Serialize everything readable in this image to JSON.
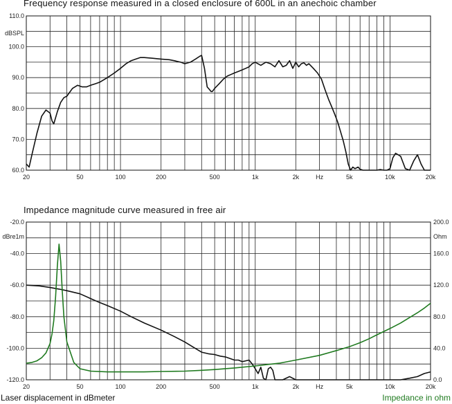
{
  "chart_data": [
    {
      "type": "line",
      "title": "Frequency response measured  in a closed enclosure of 600L in an anechoic chamber",
      "ylabel": "dBSPL",
      "xscale": "log",
      "xlim": [
        20,
        20000
      ],
      "ylim": [
        60,
        110
      ],
      "grid": true,
      "y_ticks": [
        {
          "value": 110,
          "label": "110.0"
        },
        {
          "value": 100,
          "label": "100.0"
        },
        {
          "value": 90,
          "label": "90.0"
        },
        {
          "value": 80,
          "label": "80.0"
        },
        {
          "value": 70,
          "label": "70.0"
        },
        {
          "value": 60,
          "label": "60.0"
        }
      ],
      "x_ticks": [
        {
          "value": 20,
          "label": "20"
        },
        {
          "value": 50,
          "label": "50"
        },
        {
          "value": 100,
          "label": "100"
        },
        {
          "value": 200,
          "label": "200"
        },
        {
          "value": 500,
          "label": "500"
        },
        {
          "value": 1000,
          "label": "1k"
        },
        {
          "value": 2000,
          "label": "2k"
        },
        {
          "value": 5000,
          "label": "5k"
        },
        {
          "value": 10000,
          "label": "10k"
        },
        {
          "value": 20000,
          "label": "20k"
        }
      ],
      "x_unit": "Hz",
      "series": [
        {
          "color": "#111111",
          "x": [
            20,
            21,
            22,
            24,
            26,
            28,
            30,
            31,
            32,
            34,
            36,
            38,
            40,
            44,
            48,
            52,
            56,
            60,
            65,
            70,
            80,
            90,
            100,
            110,
            120,
            130,
            140,
            150,
            170,
            200,
            230,
            250,
            280,
            300,
            330,
            360,
            390,
            400,
            420,
            440,
            460,
            470,
            480,
            500,
            540,
            580,
            620,
            660,
            700,
            750,
            800,
            850,
            900,
            950,
            1000,
            1100,
            1200,
            1300,
            1400,
            1500,
            1600,
            1700,
            1800,
            1900,
            2000,
            2100,
            2200,
            2300,
            2400,
            2500,
            2700,
            2900,
            3100,
            3300,
            3500,
            3700,
            3900,
            4100,
            4300,
            4500,
            4700,
            4900,
            5100,
            5300,
            5500,
            5800,
            6000,
            6300,
            6600,
            7000,
            8000,
            8500,
            9000,
            9500,
            10000,
            10500,
            11000,
            12000,
            13000,
            14000,
            15000,
            16000,
            17000,
            18000,
            19000,
            20000
          ],
          "y": [
            62,
            61,
            65,
            72,
            77.5,
            79.5,
            78.5,
            76,
            75,
            79,
            82,
            83.5,
            84,
            86.5,
            87.5,
            87,
            87,
            87.5,
            88,
            88.5,
            90,
            91.5,
            93,
            94.5,
            95.5,
            96,
            96.5,
            96.5,
            96.3,
            96,
            95.8,
            95.5,
            95,
            94.5,
            95,
            96,
            97,
            97.2,
            93,
            87,
            86,
            85.5,
            85.5,
            86.5,
            88,
            89.5,
            90.5,
            91,
            91.5,
            92,
            92.5,
            93,
            93.5,
            94.5,
            95,
            94,
            95,
            94.5,
            93.5,
            95.5,
            93.5,
            94,
            95.5,
            93,
            95,
            93.5,
            94.5,
            94.8,
            94,
            94.5,
            93,
            91.5,
            89.5,
            86,
            83,
            80.5,
            78,
            75.5,
            72.5,
            69.5,
            66,
            62,
            60,
            61,
            60.5,
            61,
            60.3,
            60,
            60,
            60,
            60,
            60.2,
            60,
            60,
            60.5,
            64,
            65.5,
            64.5,
            60.5,
            60,
            63,
            65,
            62,
            60,
            60,
            60
          ]
        }
      ]
    },
    {
      "type": "line",
      "title": "Impedance  magnitude curve measured in free air",
      "ylabel": "dBre1m",
      "y2label": "Ohm",
      "xscale": "log",
      "xlim": [
        20,
        20000
      ],
      "ylim": [
        -120,
        -20
      ],
      "y2lim": [
        0,
        200
      ],
      "grid": true,
      "y_ticks": [
        {
          "value": -20,
          "label": "-20.0"
        },
        {
          "value": -40,
          "label": "-40.0"
        },
        {
          "value": -60,
          "label": "-60.0"
        },
        {
          "value": -80,
          "label": "-80.0"
        },
        {
          "value": -100,
          "label": "-100.0"
        },
        {
          "value": -120,
          "label": "-120.0"
        }
      ],
      "y2_ticks": [
        {
          "value": 200,
          "label": "200.0"
        },
        {
          "value": 160,
          "label": "160.0"
        },
        {
          "value": 120,
          "label": "120.0"
        },
        {
          "value": 80,
          "label": "80.0"
        },
        {
          "value": 40,
          "label": "40.0"
        },
        {
          "value": 0,
          "label": "0.0"
        }
      ],
      "x_ticks": [
        {
          "value": 20,
          "label": "20"
        },
        {
          "value": 50,
          "label": "50"
        },
        {
          "value": 100,
          "label": "100"
        },
        {
          "value": 200,
          "label": "200"
        },
        {
          "value": 500,
          "label": "500"
        },
        {
          "value": 1000,
          "label": "1k"
        },
        {
          "value": 2000,
          "label": "2k"
        },
        {
          "value": 5000,
          "label": "5k"
        },
        {
          "value": 10000,
          "label": "10k"
        },
        {
          "value": 20000,
          "label": "20k"
        }
      ],
      "x_unit": "Hz",
      "series": [
        {
          "name": "Laser displacement in dBmeter",
          "axis": "left",
          "color": "#111111",
          "x": [
            20,
            25,
            30,
            35,
            40,
            50,
            60,
            70,
            80,
            100,
            120,
            150,
            200,
            250,
            300,
            350,
            400,
            450,
            500,
            550,
            600,
            650,
            700,
            750,
            800,
            850,
            900,
            950,
            1000,
            1050,
            1100,
            1150,
            1200,
            1250,
            1300,
            1350,
            1400,
            1500,
            1600,
            1800,
            2000,
            3000,
            5000,
            8000,
            12000,
            14000,
            16000,
            18000,
            20000
          ],
          "y": [
            -60,
            -60.5,
            -61.5,
            -62.5,
            -63.5,
            -65.5,
            -68.5,
            -71,
            -73,
            -76.5,
            -80,
            -84,
            -88.5,
            -92.5,
            -96,
            -99.5,
            -102.5,
            -103.5,
            -104,
            -105,
            -105.5,
            -106.5,
            -107.5,
            -107.5,
            -108.5,
            -108,
            -107.5,
            -110,
            -113,
            -116,
            -112,
            -119,
            -120,
            -113,
            -112,
            -114,
            -120,
            -120,
            -120,
            -118,
            -120,
            -120,
            -120,
            -120,
            -120,
            -119,
            -118,
            -116,
            -115
          ]
        },
        {
          "name": "Impedance in ohm",
          "axis": "right",
          "color": "#1f7a1f",
          "x": [
            20,
            22,
            24,
            26,
            28,
            30,
            31,
            32,
            33,
            34,
            35,
            36,
            37,
            38,
            40,
            45,
            50,
            60,
            80,
            100,
            150,
            200,
            300,
            400,
            500,
            700,
            1000,
            1500,
            2000,
            3000,
            4000,
            5000,
            6000,
            7000,
            8000,
            10000,
            12000,
            14000,
            16000,
            18000,
            20000
          ],
          "y": [
            21,
            22,
            24,
            28,
            34,
            46,
            58,
            75,
            105,
            145,
            172,
            150,
            112,
            80,
            48,
            22,
            14,
            11,
            10,
            10,
            10,
            10.5,
            11,
            12,
            13,
            15,
            17.5,
            21,
            25,
            31,
            37,
            42,
            47,
            52,
            57,
            65,
            72,
            79,
            85,
            91,
            97
          ]
        }
      ]
    }
  ],
  "footer": {
    "left_label": "Laser displacement in dBmeter",
    "right_label": "Impedance in ohm"
  }
}
